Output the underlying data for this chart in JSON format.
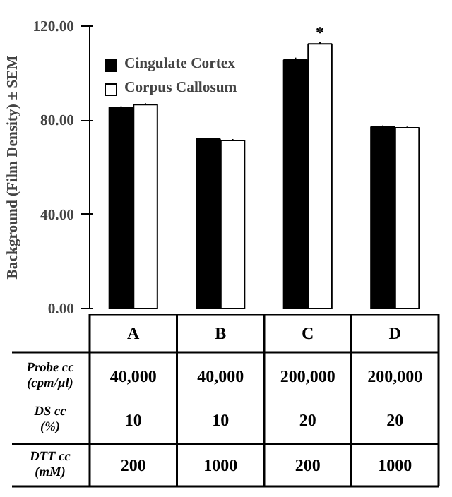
{
  "chart_data": {
    "type": "bar",
    "ylabel": "Background (Film Density) ± SEM",
    "categories": [
      "A",
      "B",
      "C",
      "D"
    ],
    "series": [
      {
        "name": "Cingulate Cortex",
        "color": "#000000",
        "values": [
          85.4,
          72.0,
          105.6,
          77.2
        ],
        "errors": [
          0.5,
          0.4,
          1.0,
          0.6
        ]
      },
      {
        "name": "Corpus Callosum",
        "color": "#ffffff",
        "values": [
          86.6,
          71.4,
          112.4,
          76.8
        ],
        "errors": [
          0.6,
          0.6,
          0.8,
          0.5
        ]
      }
    ],
    "ylim": [
      0,
      120
    ],
    "yticks": [
      {
        "value": 0,
        "label": "0.00"
      },
      {
        "value": 40,
        "label": "40.00"
      },
      {
        "value": 80,
        "label": "80.00"
      },
      {
        "value": 120,
        "label": "120.00"
      }
    ],
    "grid": false,
    "legend": "top left",
    "tick_labels": "y",
    "annotations": [
      "*",
      "Probe cc\n(cpm/µl)",
      "40,000",
      "40,000",
      "200,000",
      "200,000",
      "DS cc\n(%)",
      "10",
      "10",
      "20",
      "20",
      "DTT cc\n(mM)",
      "200",
      "1000",
      "200",
      "1000"
    ]
  }
}
